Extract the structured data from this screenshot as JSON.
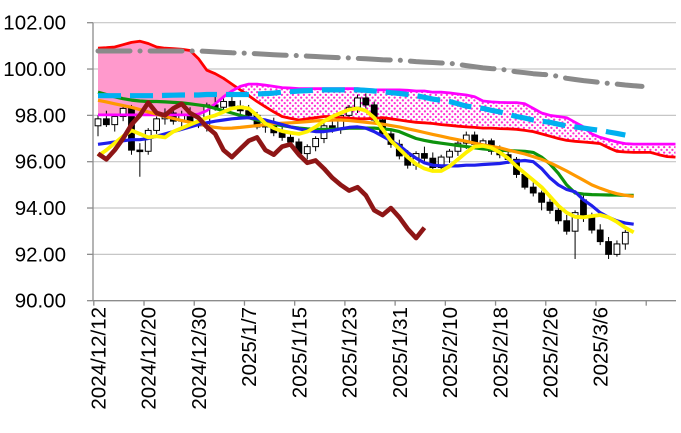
{
  "chart_data": {
    "type": "candlestick",
    "title": "",
    "legend": "none",
    "y_axis": {
      "min": 90,
      "max": 102,
      "step": 2,
      "grid": true,
      "tick_values": [
        102,
        100,
        98,
        96,
        94,
        92,
        90
      ],
      "tick_labels": [
        "102.00",
        "100.00",
        "98.00",
        "96.00",
        "94.00",
        "92.00",
        "90.00"
      ]
    },
    "x_axis": {
      "label_interval": 6,
      "tick_labels": [
        "2024/12/12",
        "2024/12/20",
        "2024/12/30",
        "2025/1/7",
        "2025/1/15",
        "2025/1/23",
        "2025/1/31",
        "2025/2/10",
        "2025/2/18",
        "2025/2/26",
        "2025/3/6"
      ]
    },
    "candle_colors": {
      "up_fill": "#FFFFFF",
      "down_fill": "#000000",
      "border": "#000000"
    },
    "grid_color": "#C6C6C6",
    "axis_color": "#8C8C8C",
    "text_color": "#000000",
    "candles": {
      "columns": [
        "open",
        "high",
        "low",
        "close"
      ],
      "rows": [
        [
          97.55,
          98.0,
          97.1,
          97.85
        ],
        [
          97.85,
          98.2,
          97.5,
          97.6
        ],
        [
          97.6,
          98.05,
          97.3,
          97.95
        ],
        [
          97.95,
          98.45,
          97.75,
          98.3
        ],
        [
          98.3,
          98.45,
          96.3,
          96.5
        ],
        [
          96.5,
          96.8,
          95.35,
          96.45
        ],
        [
          96.45,
          97.45,
          96.3,
          97.35
        ],
        [
          97.35,
          97.95,
          97.2,
          97.85
        ],
        [
          97.85,
          98.3,
          97.6,
          98.1
        ],
        [
          98.1,
          98.3,
          97.6,
          97.75
        ],
        [
          97.75,
          98.2,
          97.5,
          98.05
        ],
        [
          98.05,
          98.35,
          97.55,
          97.7
        ],
        [
          97.7,
          98.0,
          97.45,
          97.55
        ],
        [
          97.55,
          98.55,
          97.3,
          98.45
        ],
        [
          98.45,
          98.9,
          98.2,
          98.35
        ],
        [
          98.35,
          98.8,
          98.1,
          98.6
        ],
        [
          98.6,
          98.85,
          98.25,
          98.4
        ],
        [
          98.4,
          98.65,
          98.05,
          98.2
        ],
        [
          98.2,
          98.45,
          97.85,
          98.0
        ],
        [
          98.0,
          98.15,
          97.4,
          97.5
        ],
        [
          97.5,
          97.85,
          97.25,
          97.7
        ],
        [
          97.7,
          97.9,
          97.1,
          97.25
        ],
        [
          97.25,
          97.5,
          96.9,
          97.05
        ],
        [
          97.05,
          97.3,
          96.7,
          96.85
        ],
        [
          96.85,
          97.0,
          96.2,
          96.35
        ],
        [
          96.35,
          96.75,
          96.1,
          96.65
        ],
        [
          96.65,
          97.1,
          96.45,
          97.0
        ],
        [
          97.0,
          97.65,
          96.8,
          97.55
        ],
        [
          97.55,
          97.85,
          97.25,
          97.4
        ],
        [
          97.4,
          98.1,
          97.2,
          98.0
        ],
        [
          98.0,
          98.45,
          97.8,
          98.35
        ],
        [
          98.35,
          98.9,
          98.1,
          98.75
        ],
        [
          98.75,
          98.95,
          98.3,
          98.45
        ],
        [
          98.45,
          98.6,
          97.7,
          97.8
        ],
        [
          97.8,
          97.95,
          97.1,
          97.2
        ],
        [
          97.2,
          97.4,
          96.6,
          96.75
        ],
        [
          96.75,
          96.95,
          96.1,
          96.25
        ],
        [
          96.25,
          96.5,
          95.7,
          95.85
        ],
        [
          95.85,
          96.45,
          95.65,
          96.35
        ],
        [
          96.35,
          96.65,
          96.0,
          96.15
        ],
        [
          96.15,
          96.4,
          95.6,
          95.75
        ],
        [
          95.75,
          96.3,
          95.55,
          96.2
        ],
        [
          96.2,
          96.55,
          95.95,
          96.45
        ],
        [
          96.45,
          96.9,
          96.25,
          96.8
        ],
        [
          96.8,
          97.3,
          96.55,
          97.15
        ],
        [
          97.15,
          97.3,
          96.6,
          96.75
        ],
        [
          96.75,
          97.0,
          96.5,
          96.9
        ],
        [
          96.9,
          97.0,
          96.3,
          96.45
        ],
        [
          96.45,
          96.7,
          96.15,
          96.3
        ],
        [
          96.3,
          96.45,
          95.9,
          96.1
        ],
        [
          96.1,
          96.2,
          95.3,
          95.45
        ],
        [
          95.45,
          95.55,
          94.8,
          94.9
        ],
        [
          94.9,
          95.1,
          94.5,
          94.65
        ],
        [
          94.65,
          94.75,
          93.9,
          94.25
        ],
        [
          94.25,
          94.45,
          93.75,
          93.9
        ],
        [
          93.9,
          94.05,
          93.3,
          93.45
        ],
        [
          93.45,
          93.7,
          92.85,
          93.0
        ],
        [
          93.0,
          93.9,
          91.8,
          93.8
        ],
        [
          94.35,
          94.6,
          93.4,
          93.65
        ],
        [
          93.65,
          93.8,
          92.9,
          93.05
        ],
        [
          93.05,
          93.3,
          92.4,
          92.55
        ],
        [
          92.55,
          92.75,
          91.8,
          92.0
        ],
        [
          92.0,
          92.6,
          91.9,
          92.45
        ],
        [
          92.45,
          93.05,
          92.2,
          92.95
        ]
      ]
    },
    "ichimoku_cloud": {
      "fill_solid": "#FF99CC",
      "fill_dot_color": "#FF2ED2",
      "span_red": {
        "color": "#FF0000",
        "width": 2.8,
        "values": [
          100.9,
          100.92,
          100.95,
          101.05,
          101.15,
          101.2,
          101.1,
          100.95,
          100.9,
          100.88,
          100.85,
          100.8,
          100.45,
          99.95,
          99.8,
          99.6,
          99.35,
          99.1,
          98.85,
          98.6,
          98.37,
          98.15,
          97.95,
          97.87,
          97.8,
          97.85,
          97.9,
          97.95,
          97.95,
          97.9,
          97.88,
          97.85,
          97.85,
          97.87,
          97.9,
          97.85,
          97.8,
          97.75,
          97.7,
          97.68,
          97.65,
          97.6,
          97.57,
          97.53,
          97.5,
          97.48,
          97.45,
          97.45,
          97.43,
          97.42,
          97.4,
          97.35,
          97.3,
          97.2,
          97.1,
          97.0,
          96.92,
          96.88,
          96.85,
          96.82,
          96.78,
          96.6,
          96.45,
          96.42,
          96.4,
          96.4,
          96.4,
          96.3,
          96.22,
          96.2
        ]
      },
      "span_magenta": {
        "color": "#FF00FF",
        "width": 2.8,
        "values": [
          98.02,
          98.02,
          98.02,
          98.02,
          98.02,
          98.02,
          98.02,
          98.02,
          98.02,
          98.02,
          98.02,
          98.02,
          98.05,
          98.2,
          98.5,
          98.8,
          99.05,
          99.25,
          99.35,
          99.35,
          99.3,
          99.25,
          99.2,
          99.18,
          99.15,
          99.15,
          99.15,
          99.15,
          99.15,
          99.15,
          99.15,
          99.15,
          99.12,
          99.1,
          99.1,
          99.1,
          99.1,
          99.08,
          99.05,
          99.05,
          99.0,
          99.0,
          98.97,
          98.92,
          98.88,
          98.8,
          98.62,
          98.58,
          98.56,
          98.55,
          98.55,
          98.5,
          98.3,
          98.1,
          98.0,
          97.95,
          97.9,
          97.7,
          97.5,
          97.2,
          97.05,
          96.95,
          96.85,
          96.78,
          96.76,
          96.76,
          96.76,
          96.76,
          96.76,
          96.76
        ]
      }
    },
    "overlays": [
      {
        "name": "ma-green",
        "color": "#0D930D",
        "width": 3.2,
        "values": [
          99.0,
          98.9,
          98.8,
          98.72,
          98.66,
          98.62,
          98.6,
          98.6,
          98.58,
          98.56,
          98.54,
          98.5,
          98.45,
          98.4,
          98.3,
          98.2,
          98.1,
          98.0,
          97.9,
          97.8,
          97.7,
          97.62,
          97.56,
          97.5,
          97.45,
          97.42,
          97.4,
          97.4,
          97.4,
          97.42,
          97.45,
          97.45,
          97.45,
          97.45,
          97.42,
          97.38,
          97.3,
          97.15,
          97.0,
          96.92,
          96.85,
          96.8,
          96.75,
          96.7,
          96.65,
          96.6,
          96.55,
          96.52,
          96.5,
          96.48,
          96.46,
          96.45,
          96.4,
          96.2,
          95.9,
          95.5,
          95.0,
          94.65,
          94.6,
          94.58,
          94.57,
          94.56,
          94.56,
          94.55,
          94.55
        ]
      },
      {
        "name": "ma-orange",
        "color": "#FF9900",
        "width": 3.2,
        "values": [
          98.65,
          98.58,
          98.5,
          98.42,
          98.35,
          98.25,
          98.15,
          98.05,
          97.95,
          97.87,
          97.78,
          97.7,
          97.62,
          97.55,
          97.48,
          97.44,
          97.45,
          97.48,
          97.52,
          97.56,
          97.6,
          97.64,
          97.66,
          97.68,
          97.7,
          97.73,
          97.76,
          97.78,
          97.8,
          97.8,
          97.78,
          97.74,
          97.7,
          97.66,
          97.62,
          97.56,
          97.5,
          97.42,
          97.34,
          97.26,
          97.18,
          97.1,
          97.02,
          96.95,
          96.88,
          96.8,
          96.73,
          96.66,
          96.6,
          96.5,
          96.42,
          96.33,
          96.22,
          96.1,
          95.95,
          95.78,
          95.6,
          95.4,
          95.2,
          95.0,
          94.85,
          94.72,
          94.62,
          94.55,
          94.5
        ]
      },
      {
        "name": "ma-blue",
        "color": "#1F1FEB",
        "width": 3.2,
        "values": [
          96.75,
          96.8,
          96.85,
          96.9,
          96.95,
          96.95,
          97.0,
          97.1,
          97.2,
          97.3,
          97.4,
          97.5,
          97.6,
          97.68,
          97.75,
          97.8,
          97.85,
          97.88,
          97.9,
          97.85,
          97.8,
          97.7,
          97.6,
          97.5,
          97.42,
          97.35,
          97.3,
          97.3,
          97.35,
          97.42,
          97.48,
          97.5,
          97.45,
          97.3,
          97.1,
          96.9,
          96.7,
          96.4,
          96.15,
          95.95,
          95.85,
          95.82,
          95.82,
          95.82,
          95.85,
          95.85,
          95.88,
          95.9,
          95.92,
          95.98,
          96.02,
          96.05,
          96.0,
          95.7,
          95.3,
          95.0,
          94.8,
          94.7,
          94.35,
          94.1,
          93.8,
          93.6,
          93.45,
          93.35,
          93.3
        ]
      },
      {
        "name": "ma-yellow",
        "color": "#FFF200",
        "width": 3.8,
        "values": [
          96.25,
          96.5,
          96.8,
          97.1,
          97.35,
          97.2,
          97.05,
          97.1,
          97.05,
          97.3,
          97.45,
          97.6,
          97.75,
          97.9,
          98.0,
          98.15,
          98.3,
          98.35,
          98.3,
          98.0,
          97.65,
          97.45,
          97.32,
          97.25,
          97.2,
          97.3,
          97.5,
          97.75,
          97.95,
          98.1,
          98.25,
          98.3,
          98.2,
          97.9,
          97.4,
          96.9,
          96.55,
          96.2,
          95.9,
          95.7,
          95.6,
          95.6,
          95.8,
          96.1,
          96.4,
          96.65,
          96.68,
          96.6,
          96.4,
          96.15,
          95.8,
          95.5,
          95.2,
          94.9,
          94.5,
          94.1,
          93.8,
          93.62,
          93.6,
          93.65,
          93.7,
          93.6,
          93.4,
          93.15,
          92.95
        ]
      },
      {
        "name": "comparison-darkred",
        "color": "#8E1616",
        "width": 4.6,
        "values": [
          96.35,
          96.1,
          96.5,
          97.0,
          97.6,
          98.0,
          98.55,
          98.1,
          98.0,
          98.3,
          98.5,
          98.1,
          97.9,
          97.5,
          97.2,
          96.5,
          96.2,
          96.55,
          96.9,
          97.05,
          96.5,
          96.3,
          96.65,
          96.75,
          96.3,
          95.95,
          96.05,
          95.7,
          95.3,
          95.0,
          94.75,
          94.9,
          94.55,
          93.9,
          93.7,
          94.0,
          93.6,
          93.1,
          92.7,
          93.15
        ]
      },
      {
        "name": "ma-cyan-dashed",
        "color": "#00B0F0",
        "width": 5.2,
        "dash": "23 9",
        "values": [
          98.85,
          98.85,
          98.85,
          98.85,
          98.85,
          98.85,
          98.85,
          98.85,
          98.86,
          98.87,
          98.88,
          98.88,
          98.88,
          98.9,
          98.9,
          98.9,
          98.9,
          98.9,
          98.9,
          98.92,
          98.94,
          98.96,
          99.0,
          99.02,
          99.05,
          99.07,
          99.09,
          99.1,
          99.1,
          99.1,
          99.1,
          99.1,
          99.08,
          99.05,
          99.02,
          98.98,
          98.95,
          98.9,
          98.85,
          98.78,
          98.7,
          98.65,
          98.6,
          98.5,
          98.4,
          98.35,
          98.3,
          98.22,
          98.15,
          98.05,
          97.95,
          97.88,
          97.8,
          97.75,
          97.7,
          97.62,
          97.55,
          97.5,
          97.45,
          97.4,
          97.35,
          97.28,
          97.22,
          97.15
        ]
      },
      {
        "name": "ma-gray-dashdot",
        "color": "#8A8A8A",
        "width": 5,
        "dash": "32 10 0.1 10",
        "linecap": "round",
        "values": [
          100.78,
          100.78,
          100.78,
          100.78,
          100.78,
          100.78,
          100.78,
          100.78,
          100.78,
          100.78,
          100.78,
          100.78,
          100.78,
          100.76,
          100.74,
          100.72,
          100.7,
          100.69,
          100.68,
          100.66,
          100.64,
          100.62,
          100.6,
          100.59,
          100.58,
          100.56,
          100.54,
          100.52,
          100.5,
          100.49,
          100.48,
          100.46,
          100.44,
          100.42,
          100.4,
          100.39,
          100.38,
          100.35,
          100.32,
          100.3,
          100.28,
          100.26,
          100.25,
          100.2,
          100.15,
          100.1,
          100.05,
          100.02,
          100.0,
          99.94,
          99.88,
          99.84,
          99.8,
          99.77,
          99.75,
          99.68,
          99.6,
          99.55,
          99.5,
          99.46,
          99.42,
          99.38,
          99.35,
          99.31,
          99.28,
          99.25
        ]
      }
    ]
  }
}
